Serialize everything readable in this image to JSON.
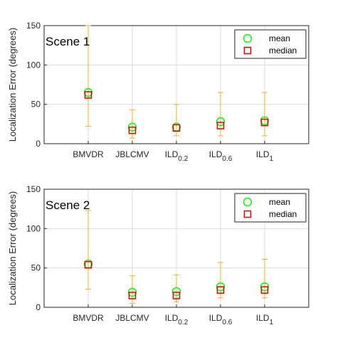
{
  "colors": {
    "mean": "#00ff00",
    "median": "#dd0000",
    "errorbar": "#edb120",
    "grid": "#dedede",
    "axis": "#262626"
  },
  "legend": {
    "mean": "mean",
    "median": "median",
    "placement": "top-right"
  },
  "chart_data": [
    {
      "type": "scatter",
      "title": "Scene 1",
      "ylabel": "Localization Error (degrees)",
      "xlabel": "",
      "ylim": [
        0,
        150
      ],
      "yticks": [
        0,
        50,
        100,
        150
      ],
      "grid": true,
      "categories": [
        {
          "base": "BMVDR",
          "sub": ""
        },
        {
          "base": "JBLCMV",
          "sub": ""
        },
        {
          "base": "ILD",
          "sub": "0.2"
        },
        {
          "base": "ILD",
          "sub": "0.6"
        },
        {
          "base": "ILD",
          "sub": "1"
        }
      ],
      "series": [
        {
          "name": "mean",
          "marker": "circle",
          "values": [
            65,
            21,
            21,
            28,
            29
          ]
        },
        {
          "name": "median",
          "marker": "square",
          "values": [
            62,
            17,
            20,
            23,
            27
          ]
        }
      ],
      "range": {
        "min": [
          22,
          7,
          10,
          10,
          10
        ],
        "max": [
          150,
          43,
          50,
          65,
          65
        ]
      }
    },
    {
      "type": "scatter",
      "title": "Scene 2",
      "ylabel": "Localization Error (degrees)",
      "xlabel": "",
      "ylim": [
        0,
        150
      ],
      "yticks": [
        0,
        50,
        100,
        150
      ],
      "grid": true,
      "categories": [
        {
          "base": "BMVDR",
          "sub": ""
        },
        {
          "base": "JBLCMV",
          "sub": ""
        },
        {
          "base": "ILD",
          "sub": "0.2"
        },
        {
          "base": "ILD",
          "sub": "0.6"
        },
        {
          "base": "ILD",
          "sub": "1"
        }
      ],
      "series": [
        {
          "name": "mean",
          "marker": "circle",
          "values": [
            55,
            19,
            20,
            26,
            26
          ]
        },
        {
          "name": "median",
          "marker": "square",
          "values": [
            54,
            15,
            15,
            22,
            22
          ]
        }
      ],
      "range": {
        "min": [
          23,
          5,
          7,
          12,
          12
        ],
        "max": [
          123,
          40,
          41,
          57,
          61
        ]
      }
    }
  ]
}
